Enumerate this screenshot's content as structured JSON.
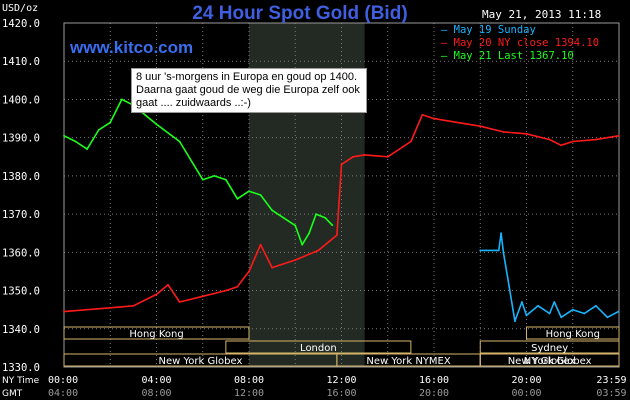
{
  "header": {
    "unit": "USD/oz",
    "title": "24 Hour Spot Gold (Bid)",
    "datetime": "May 21, 2013 11:18",
    "site": "www.kitco.com"
  },
  "annotation": "8 uur 's-morgens in Europa en goud op 1400. Daarna gaat goud de weg die Europa zelf ook gaat .... zuidwaards ..:-)",
  "legend": [
    {
      "text": "— May 19 Sunday",
      "color": "#19b4ff"
    },
    {
      "text": "— May 20 NY close 1394.10",
      "color": "#ff1a1a"
    },
    {
      "text": "— May 21 Last 1367.10",
      "color": "#1aff1a"
    }
  ],
  "colors": {
    "background": "#000000",
    "grid": "#7a7a7a",
    "highlight": "#232a23",
    "session_border": "#d6b66b",
    "sunday": "#19b4ff",
    "ny_close": "#ff1a1a",
    "last": "#1aff1a",
    "title": "#3f5fe0"
  },
  "sessions": [
    {
      "label": "Hong Kong",
      "start": 0.0,
      "end": 8.0,
      "row": 0
    },
    {
      "label": "London",
      "start": 7.0,
      "end": 15.0,
      "row": 1
    },
    {
      "label": "New York Globex",
      "start": 0.0,
      "end": 11.8,
      "row": 2
    },
    {
      "label": "New York NYMEX",
      "start": 11.8,
      "end": 18.0,
      "row": 2
    },
    {
      "label": "NY Globex",
      "start": 18.0,
      "end": 24.0,
      "row": 2
    },
    {
      "label": "Hong Kong",
      "start": 20.0,
      "end": 24.0,
      "row": 0
    },
    {
      "label": "Sydney",
      "start": 18.0,
      "end": 24.0,
      "row": 1
    },
    {
      "label": "New York Globex",
      "start": 18.0,
      "end": 24.0,
      "row": 2
    }
  ],
  "x_axis": {
    "ny_label": "NY Time",
    "gmt_label": "GMT",
    "ny_ticks": [
      "00:00",
      "04:00",
      "08:00",
      "12:00",
      "16:00",
      "20:00",
      "23:59"
    ],
    "gmt_ticks": [
      "04:00",
      "08:00",
      "12:00",
      "16:00",
      "20:00",
      "00:00",
      "03:59"
    ]
  },
  "chart_data": {
    "type": "line",
    "title": "24 Hour Spot Gold (Bid)",
    "ylabel": "USD/oz",
    "xlabel": "NY Time",
    "xlim": [
      0,
      24
    ],
    "ylim": [
      1330,
      1420
    ],
    "yticks": [
      "1420.0",
      "1410.0",
      "1400.0",
      "1390.0",
      "1380.0",
      "1370.0",
      "1360.0",
      "1350.0",
      "1340.0",
      "1330.0"
    ],
    "highlight": [
      8,
      13
    ],
    "series": [
      {
        "name": "May 19 Sunday",
        "color": "#19b4ff",
        "x": [
          18.0,
          18.8,
          18.9,
          19.0,
          19.25,
          19.5,
          19.8,
          20.0,
          20.5,
          21.0,
          21.2,
          21.5,
          22.0,
          22.5,
          23.0,
          23.5,
          23.98
        ],
        "y": [
          1360.5,
          1360.5,
          1365.0,
          1360.0,
          1351.0,
          1342.0,
          1347.0,
          1343.5,
          1346.0,
          1344.0,
          1347.0,
          1343.0,
          1345.0,
          1344.0,
          1346.0,
          1343.0,
          1344.5
        ]
      },
      {
        "name": "May 20 NY close 1394.10",
        "color": "#ff1a1a",
        "x": [
          0.0,
          1.0,
          2.0,
          3.0,
          4.0,
          4.5,
          5.0,
          6.0,
          7.0,
          7.5,
          8.0,
          8.5,
          9.0,
          10.0,
          11.0,
          11.5,
          11.8,
          12.0,
          12.5,
          13.0,
          14.0,
          15.0,
          15.5,
          16.0,
          17.0,
          18.0,
          19.0,
          20.0,
          21.0,
          21.5,
          22.0,
          23.0,
          23.98
        ],
        "y": [
          1344.5,
          1345.0,
          1345.5,
          1346.0,
          1349.0,
          1351.5,
          1347.0,
          1348.5,
          1350.0,
          1351.0,
          1355.0,
          1362.0,
          1356.0,
          1358.0,
          1360.5,
          1363.0,
          1364.5,
          1383.0,
          1385.0,
          1385.5,
          1385.0,
          1389.0,
          1396.0,
          1395.0,
          1394.0,
          1393.0,
          1391.5,
          1391.0,
          1389.5,
          1388.0,
          1389.0,
          1389.5,
          1390.5
        ]
      },
      {
        "name": "May 21 Last 1367.10",
        "color": "#1aff1a",
        "x": [
          0.0,
          0.5,
          1.0,
          1.5,
          2.0,
          2.5,
          3.0,
          3.5,
          4.0,
          5.0,
          6.0,
          6.5,
          7.0,
          7.5,
          8.0,
          8.5,
          9.0,
          9.5,
          10.0,
          10.3,
          10.6,
          10.9,
          11.3,
          11.6
        ],
        "y": [
          1390.5,
          1389.0,
          1387.0,
          1392.0,
          1394.0,
          1400.0,
          1398.5,
          1396.0,
          1393.5,
          1389.0,
          1379.0,
          1380.0,
          1379.0,
          1374.0,
          1376.0,
          1375.0,
          1371.0,
          1369.0,
          1367.0,
          1362.0,
          1365.0,
          1370.0,
          1369.0,
          1367.1
        ]
      }
    ]
  }
}
